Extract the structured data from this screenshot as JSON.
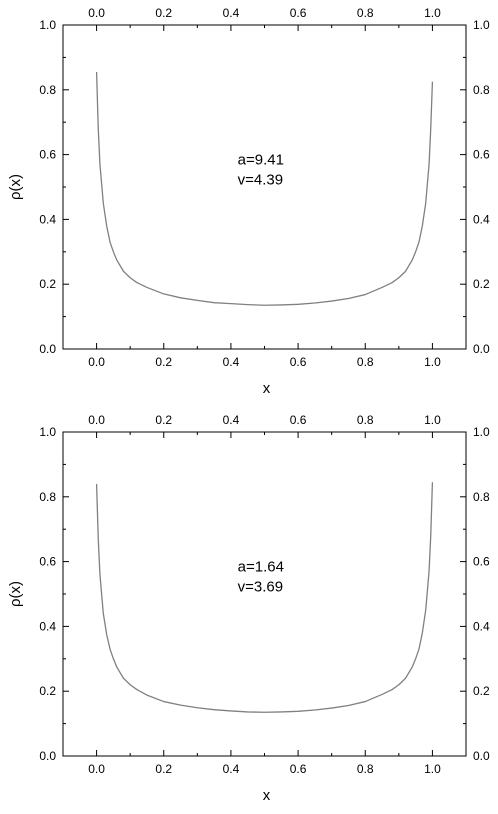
{
  "chart_data": [
    {
      "type": "line",
      "xlabel": "x",
      "ylabel": "ρ(x)",
      "xlim": [
        -0.1,
        1.1
      ],
      "ylim": [
        0.0,
        1.0
      ],
      "xticks": [
        "0.0",
        "0.2",
        "0.4",
        "0.6",
        "0.8",
        "1.0"
      ],
      "yticks": [
        "0.0",
        "0.2",
        "0.4",
        "0.6",
        "0.8",
        "1.0"
      ],
      "annotation": [
        "a=9.41",
        "v=4.39"
      ],
      "line_color": "#808080",
      "grid": false,
      "series": [
        {
          "x": [
            0.0,
            0.005,
            0.01,
            0.02,
            0.03,
            0.04,
            0.05,
            0.06,
            0.08,
            0.1,
            0.12,
            0.15,
            0.2,
            0.25,
            0.3,
            0.35,
            0.4,
            0.45,
            0.5,
            0.55,
            0.6,
            0.65,
            0.7,
            0.75,
            0.8,
            0.85,
            0.88,
            0.9,
            0.92,
            0.94,
            0.95,
            0.96,
            0.97,
            0.98,
            0.99,
            0.995,
            1.0
          ],
          "y": [
            0.855,
            0.68,
            0.57,
            0.45,
            0.38,
            0.33,
            0.3,
            0.275,
            0.24,
            0.22,
            0.205,
            0.19,
            0.17,
            0.158,
            0.15,
            0.143,
            0.14,
            0.137,
            0.135,
            0.136,
            0.138,
            0.142,
            0.148,
            0.156,
            0.168,
            0.19,
            0.205,
            0.22,
            0.24,
            0.275,
            0.3,
            0.33,
            0.38,
            0.45,
            0.57,
            0.68,
            0.825
          ]
        }
      ]
    },
    {
      "type": "line",
      "xlabel": "x",
      "ylabel": "ρ(x)",
      "xlim": [
        -0.1,
        1.1
      ],
      "ylim": [
        0.0,
        1.0
      ],
      "xticks": [
        "0.0",
        "0.2",
        "0.4",
        "0.6",
        "0.8",
        "1.0"
      ],
      "yticks": [
        "0.0",
        "0.2",
        "0.4",
        "0.6",
        "0.8",
        "1.0"
      ],
      "annotation": [
        "a=1.64",
        "v=3.69"
      ],
      "line_color": "#808080",
      "grid": false,
      "series": [
        {
          "x": [
            0.0,
            0.005,
            0.01,
            0.02,
            0.03,
            0.04,
            0.05,
            0.06,
            0.08,
            0.1,
            0.12,
            0.15,
            0.2,
            0.25,
            0.3,
            0.35,
            0.4,
            0.45,
            0.5,
            0.55,
            0.6,
            0.65,
            0.7,
            0.75,
            0.8,
            0.85,
            0.88,
            0.9,
            0.92,
            0.94,
            0.95,
            0.96,
            0.97,
            0.98,
            0.99,
            0.995,
            1.0
          ],
          "y": [
            0.84,
            0.67,
            0.56,
            0.44,
            0.375,
            0.33,
            0.3,
            0.275,
            0.24,
            0.22,
            0.205,
            0.188,
            0.168,
            0.157,
            0.149,
            0.143,
            0.139,
            0.136,
            0.135,
            0.136,
            0.138,
            0.142,
            0.148,
            0.156,
            0.168,
            0.19,
            0.205,
            0.22,
            0.24,
            0.275,
            0.3,
            0.33,
            0.38,
            0.45,
            0.57,
            0.68,
            0.845
          ]
        }
      ]
    }
  ]
}
